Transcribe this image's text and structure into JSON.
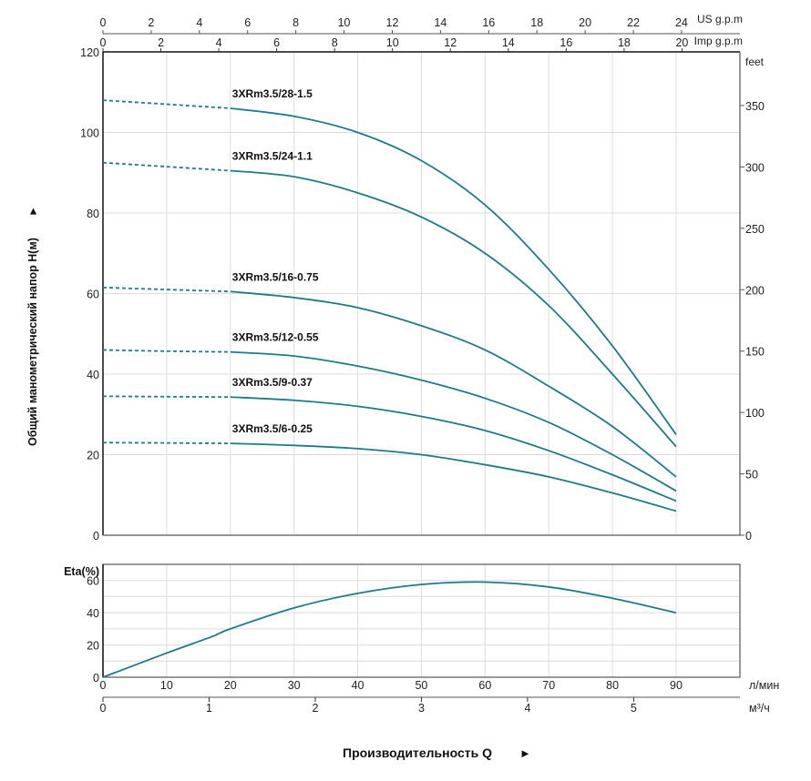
{
  "chart_data": [
    {
      "type": "line",
      "title": "",
      "xlabel": "Производительность Q",
      "ylabel": "Общий манометрический напор H(м)",
      "x_unit": "л/мин",
      "xlim": [
        0,
        100
      ],
      "ylim": [
        0,
        120
      ],
      "y_ticks": [
        0,
        20,
        40,
        60,
        80,
        100,
        120
      ],
      "y2_label": "feet",
      "y2_ticks": [
        0,
        50,
        100,
        150,
        200,
        250,
        300,
        350
      ],
      "top_axes": [
        {
          "label": "US g.p.m",
          "ticks": [
            0,
            2,
            4,
            6,
            8,
            10,
            12,
            14,
            16,
            18,
            20,
            22,
            24
          ]
        },
        {
          "label": "Imp g.p.m",
          "ticks": [
            0,
            2,
            4,
            6,
            8,
            10,
            12,
            14,
            16,
            18,
            20
          ]
        }
      ],
      "grid": true,
      "dashed_until_x": 20,
      "x": [
        0,
        10,
        20,
        30,
        40,
        50,
        60,
        70,
        80,
        90
      ],
      "series": [
        {
          "name": "3XRm3.5/28-1.5",
          "values": [
            108,
            107,
            106,
            104,
            100,
            93,
            82,
            66,
            47,
            25
          ]
        },
        {
          "name": "3XRm3.5/24-1.1",
          "values": [
            92.5,
            91.5,
            90.5,
            89,
            85,
            79,
            70,
            57,
            40,
            22
          ]
        },
        {
          "name": "3XRm3.5/16-0.75",
          "values": [
            61.5,
            61,
            60.5,
            59,
            56.5,
            52,
            46,
            37,
            27,
            14.5
          ]
        },
        {
          "name": "3XRm3.5/12-0.55",
          "values": [
            46,
            45.7,
            45.5,
            44.5,
            42,
            38.5,
            34,
            28,
            20,
            11
          ]
        },
        {
          "name": "3XRm3.5/9-0.37",
          "values": [
            34.5,
            34.4,
            34.3,
            33.5,
            32,
            29.5,
            26,
            21,
            15,
            8.5
          ]
        },
        {
          "name": "3XRm3.5/6-0.25",
          "values": [
            23,
            22.9,
            22.8,
            22.3,
            21.5,
            20,
            17.5,
            14.5,
            10.5,
            6
          ]
        }
      ],
      "line_color": "#1f7a8c"
    },
    {
      "type": "line",
      "ylabel": "Eta(%)",
      "xlim": [
        0,
        100
      ],
      "ylim": [
        0,
        70
      ],
      "y_ticks": [
        0,
        20,
        40,
        60
      ],
      "x_ticks": [
        0,
        10,
        20,
        30,
        40,
        50,
        60,
        70,
        80,
        90
      ],
      "x_unit": "л/мин",
      "x2_ticks": [
        0,
        1,
        2,
        3,
        4,
        5
      ],
      "x2_unit": "м³/ч",
      "grid": true,
      "x": [
        0,
        10,
        17,
        20,
        30,
        40,
        50,
        60,
        70,
        80,
        90
      ],
      "series": [
        {
          "name": "Eta",
          "values": [
            0,
            15,
            25,
            30,
            43,
            52,
            57.5,
            59,
            56,
            49,
            40
          ]
        }
      ],
      "line_color": "#1f7a8c"
    }
  ],
  "labels": {
    "x_title": "Производительность Q",
    "x_arrow": "►",
    "y_title": "Общий манометрический напор H(м)",
    "y_arrow": "►"
  }
}
